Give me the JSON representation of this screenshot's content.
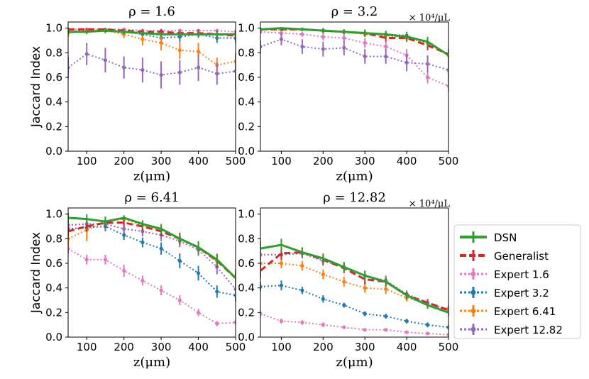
{
  "chart_data": [
    {
      "type": "line",
      "title": "ρ = 1.6",
      "xlabel": "z(μm)",
      "ylabel": "Jaccard Index",
      "unit_note": "",
      "x": [
        50,
        100,
        150,
        200,
        250,
        300,
        350,
        400,
        450,
        500
      ],
      "xlim": [
        50,
        500
      ],
      "ylim": [
        0,
        1.05
      ],
      "xticks": [
        "100",
        "200",
        "300",
        "400",
        "500"
      ],
      "yticks": [
        "0.0",
        "0.2",
        "0.4",
        "0.6",
        "0.8",
        "1.0"
      ],
      "series": [
        {
          "name": "Expert 1.6",
          "values": [
            0.99,
            0.99,
            0.99,
            0.99,
            0.98,
            0.98,
            0.98,
            0.98,
            0.98,
            0.97
          ],
          "err": [
            0.01,
            0.01,
            0.01,
            0.01,
            0.01,
            0.01,
            0.01,
            0.01,
            0.01,
            0.02
          ]
        },
        {
          "name": "Expert 3.2",
          "values": [
            0.97,
            0.98,
            0.98,
            0.97,
            0.95,
            0.92,
            0.93,
            0.95,
            0.92,
            0.92
          ],
          "err": [
            0.02,
            0.02,
            0.02,
            0.02,
            0.03,
            0.04,
            0.04,
            0.03,
            0.04,
            0.04
          ]
        },
        {
          "name": "Expert 6.41",
          "values": [
            0.96,
            0.98,
            0.98,
            0.95,
            0.91,
            0.88,
            0.82,
            0.81,
            0.7,
            0.73
          ],
          "err": [
            0.03,
            0.02,
            0.02,
            0.03,
            0.05,
            0.06,
            0.07,
            0.07,
            0.06,
            0.07
          ]
        },
        {
          "name": "Expert 12.82",
          "values": [
            0.68,
            0.79,
            0.74,
            0.68,
            0.66,
            0.62,
            0.64,
            0.68,
            0.63,
            0.65
          ],
          "err": [
            0.09,
            0.09,
            0.1,
            0.09,
            0.1,
            0.11,
            0.1,
            0.11,
            0.09,
            0.15
          ]
        },
        {
          "name": "Generalist",
          "values": [
            0.99,
            0.99,
            0.99,
            0.98,
            0.97,
            0.97,
            0.96,
            0.96,
            0.95,
            0.94
          ],
          "err": [
            0.01,
            0.01,
            0.01,
            0.01,
            0.02,
            0.02,
            0.02,
            0.03,
            0.03,
            0.03
          ]
        },
        {
          "name": "DSN",
          "values": [
            0.97,
            0.97,
            0.98,
            0.97,
            0.96,
            0.95,
            0.95,
            0.95,
            0.95,
            0.95
          ],
          "err": [
            0.02,
            0.02,
            0.02,
            0.02,
            0.02,
            0.02,
            0.02,
            0.03,
            0.03,
            0.03
          ]
        }
      ]
    },
    {
      "type": "line",
      "title": "ρ = 3.2",
      "xlabel": "z(μm)",
      "ylabel": "",
      "unit_note": "× 10⁴/μL",
      "x": [
        50,
        100,
        150,
        200,
        250,
        300,
        350,
        400,
        450,
        500
      ],
      "xlim": [
        50,
        500
      ],
      "ylim": [
        0,
        1.05
      ],
      "xticks": [
        "100",
        "200",
        "300",
        "400",
        "500"
      ],
      "yticks": [
        "0.0",
        "0.2",
        "0.4",
        "0.6",
        "0.8",
        "1.0"
      ],
      "series": [
        {
          "name": "Expert 1.6",
          "values": [
            0.97,
            0.96,
            0.95,
            0.93,
            0.92,
            0.88,
            0.85,
            0.78,
            0.6,
            0.53
          ],
          "err": [
            0.02,
            0.02,
            0.02,
            0.03,
            0.03,
            0.04,
            0.04,
            0.05,
            0.05,
            0.05
          ]
        },
        {
          "name": "Expert 3.2",
          "values": [
            0.99,
            0.99,
            0.99,
            0.98,
            0.97,
            0.96,
            0.95,
            0.94,
            0.88,
            0.78
          ],
          "err": [
            0.01,
            0.01,
            0.01,
            0.02,
            0.02,
            0.02,
            0.02,
            0.03,
            0.04,
            0.05
          ]
        },
        {
          "name": "Expert 6.41",
          "values": [
            0.99,
            0.99,
            0.99,
            0.98,
            0.97,
            0.95,
            0.94,
            0.92,
            0.88,
            0.78
          ],
          "err": [
            0.01,
            0.01,
            0.01,
            0.02,
            0.02,
            0.02,
            0.03,
            0.03,
            0.04,
            0.04
          ]
        },
        {
          "name": "Expert 12.82",
          "values": [
            0.85,
            0.91,
            0.85,
            0.83,
            0.84,
            0.77,
            0.77,
            0.72,
            0.71,
            0.66
          ],
          "err": [
            0.05,
            0.05,
            0.06,
            0.06,
            0.06,
            0.06,
            0.06,
            0.07,
            0.07,
            0.08
          ]
        },
        {
          "name": "Generalist",
          "values": [
            0.99,
            0.99,
            0.99,
            0.98,
            0.97,
            0.96,
            0.92,
            0.92,
            0.86,
            0.79
          ],
          "err": [
            0.01,
            0.01,
            0.01,
            0.02,
            0.02,
            0.02,
            0.03,
            0.03,
            0.04,
            0.04
          ]
        },
        {
          "name": "DSN",
          "values": [
            0.99,
            1.0,
            0.99,
            0.98,
            0.97,
            0.96,
            0.95,
            0.93,
            0.89,
            0.78
          ],
          "err": [
            0.01,
            0.01,
            0.01,
            0.02,
            0.02,
            0.03,
            0.03,
            0.03,
            0.04,
            0.05
          ]
        }
      ]
    },
    {
      "type": "line",
      "title": "ρ = 6.41",
      "xlabel": "z(μm)",
      "ylabel": "Jaccard Index",
      "unit_note": "",
      "x": [
        50,
        100,
        150,
        200,
        250,
        300,
        350,
        400,
        450,
        500
      ],
      "xlim": [
        50,
        500
      ],
      "ylim": [
        0,
        1.05
      ],
      "xticks": [
        "100",
        "200",
        "300",
        "400",
        "500"
      ],
      "yticks": [
        "0.0",
        "0.2",
        "0.4",
        "0.6",
        "0.8",
        "1.0"
      ],
      "series": [
        {
          "name": "Expert 1.6",
          "values": [
            0.72,
            0.63,
            0.63,
            0.54,
            0.46,
            0.38,
            0.3,
            0.2,
            0.11,
            0.12
          ],
          "err": [
            0.04,
            0.04,
            0.04,
            0.05,
            0.04,
            0.04,
            0.04,
            0.03,
            0.02,
            0.02
          ]
        },
        {
          "name": "Expert 3.2",
          "values": [
            0.88,
            0.89,
            0.9,
            0.83,
            0.77,
            0.72,
            0.62,
            0.52,
            0.37,
            0.34
          ],
          "err": [
            0.04,
            0.04,
            0.04,
            0.04,
            0.04,
            0.05,
            0.06,
            0.06,
            0.05,
            0.05
          ]
        },
        {
          "name": "Expert 6.41",
          "values": [
            0.8,
            0.87,
            0.94,
            0.96,
            0.91,
            0.87,
            0.8,
            0.72,
            0.62,
            0.49
          ],
          "err": [
            0.06,
            0.09,
            0.04,
            0.03,
            0.03,
            0.04,
            0.04,
            0.05,
            0.05,
            0.06
          ]
        },
        {
          "name": "Expert 12.82",
          "values": [
            0.91,
            0.92,
            0.92,
            0.88,
            0.86,
            0.83,
            0.78,
            0.71,
            0.57,
            0.39
          ],
          "err": [
            0.04,
            0.04,
            0.04,
            0.04,
            0.04,
            0.05,
            0.05,
            0.05,
            0.06,
            0.06
          ]
        },
        {
          "name": "Generalist",
          "values": [
            0.86,
            0.9,
            0.93,
            0.93,
            0.9,
            0.86,
            0.8,
            0.73,
            0.62,
            0.48
          ],
          "err": [
            0.04,
            0.04,
            0.04,
            0.03,
            0.04,
            0.04,
            0.05,
            0.05,
            0.05,
            0.06
          ]
        },
        {
          "name": "DSN",
          "values": [
            0.97,
            0.96,
            0.94,
            0.97,
            0.92,
            0.88,
            0.8,
            0.73,
            0.63,
            0.48
          ],
          "err": [
            0.04,
            0.04,
            0.04,
            0.02,
            0.03,
            0.04,
            0.04,
            0.05,
            0.05,
            0.06
          ]
        }
      ]
    },
    {
      "type": "line",
      "title": "ρ = 12.82",
      "xlabel": "z(μm)",
      "ylabel": "",
      "unit_note": "× 10⁴/μL",
      "x": [
        50,
        100,
        150,
        200,
        250,
        300,
        350,
        400,
        450,
        500
      ],
      "xlim": [
        50,
        500
      ],
      "ylim": [
        0,
        1.05
      ],
      "xticks": [
        "100",
        "200",
        "300",
        "400",
        "500"
      ],
      "yticks": [
        "0.0",
        "0.2",
        "0.4",
        "0.6",
        "0.8",
        "1.0"
      ],
      "series": [
        {
          "name": "Expert 1.6",
          "values": [
            0.19,
            0.13,
            0.12,
            0.1,
            0.08,
            0.06,
            0.06,
            0.04,
            0.03,
            0.02
          ],
          "err": [
            0.03,
            0.02,
            0.02,
            0.02,
            0.01,
            0.01,
            0.01,
            0.01,
            0.01,
            0.01
          ]
        },
        {
          "name": "Expert 3.2",
          "values": [
            0.41,
            0.42,
            0.38,
            0.31,
            0.26,
            0.19,
            0.17,
            0.13,
            0.1,
            0.08
          ],
          "err": [
            0.04,
            0.04,
            0.03,
            0.03,
            0.02,
            0.02,
            0.02,
            0.02,
            0.02,
            0.02
          ]
        },
        {
          "name": "Expert 6.41",
          "values": [
            0.6,
            0.6,
            0.58,
            0.51,
            0.45,
            0.4,
            0.39,
            0.32,
            0.27,
            0.23
          ],
          "err": [
            0.04,
            0.04,
            0.04,
            0.04,
            0.04,
            0.04,
            0.04,
            0.03,
            0.03,
            0.03
          ]
        },
        {
          "name": "Expert 12.82",
          "values": [
            0.67,
            0.67,
            0.68,
            0.62,
            0.57,
            0.5,
            0.46,
            0.35,
            0.28,
            0.21
          ],
          "err": [
            0.04,
            0.04,
            0.04,
            0.04,
            0.04,
            0.04,
            0.04,
            0.03,
            0.03,
            0.03
          ]
        },
        {
          "name": "Generalist",
          "values": [
            0.54,
            0.68,
            0.69,
            0.63,
            0.56,
            0.47,
            0.45,
            0.34,
            0.28,
            0.22
          ],
          "err": [
            0.06,
            0.05,
            0.04,
            0.04,
            0.04,
            0.04,
            0.04,
            0.03,
            0.03,
            0.03
          ]
        },
        {
          "name": "DSN",
          "values": [
            0.72,
            0.75,
            0.69,
            0.64,
            0.57,
            0.5,
            0.45,
            0.34,
            0.26,
            0.2
          ],
          "err": [
            0.06,
            0.05,
            0.04,
            0.04,
            0.04,
            0.04,
            0.04,
            0.03,
            0.03,
            0.03
          ]
        }
      ]
    }
  ],
  "legend": {
    "placement": "right",
    "entries": [
      {
        "name": "DSN",
        "color": "#2ca02c",
        "style": "solid",
        "marker": "none"
      },
      {
        "name": "Generalist",
        "color": "#d62728",
        "style": "dashed",
        "marker": "none"
      },
      {
        "name": "Expert 1.6",
        "color": "#e377c2",
        "style": "dotted",
        "marker": "dot"
      },
      {
        "name": "Expert 3.2",
        "color": "#1f77b4",
        "style": "dotted",
        "marker": "dot"
      },
      {
        "name": "Expert 6.41",
        "color": "#ff7f0e",
        "style": "dotted",
        "marker": "dot"
      },
      {
        "name": "Expert 12.82",
        "color": "#9467bd",
        "style": "dotted",
        "marker": "dot"
      }
    ]
  },
  "colors": {
    "DSN": "#2ca02c",
    "Generalist": "#d62728",
    "Expert 1.6": "#e377c2",
    "Expert 3.2": "#1f77b4",
    "Expert 6.41": "#ff7f0e",
    "Expert 12.82": "#9467bd"
  }
}
